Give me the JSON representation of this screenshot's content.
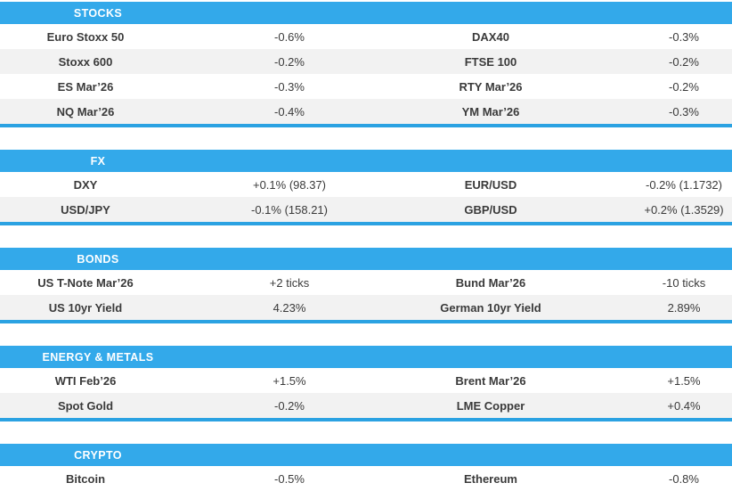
{
  "theme": {
    "header_bg": "#33A9EA",
    "header_text": "#FFFFFF",
    "section_border": "#2BA2E2",
    "row_bg": "#FFFFFF",
    "row_alt_bg": "#F2F2F2",
    "text_color": "#3A3A3A"
  },
  "sections": [
    {
      "title": "STOCKS",
      "rows": [
        {
          "left_name": "Euro Stoxx 50",
          "left_value": "-0.6%",
          "right_name": "DAX40",
          "right_value": "-0.3%"
        },
        {
          "left_name": "Stoxx 600",
          "left_value": "-0.2%",
          "right_name": "FTSE 100",
          "right_value": "-0.2%"
        },
        {
          "left_name": "ES Mar’26",
          "left_value": "-0.3%",
          "right_name": "RTY Mar’26",
          "right_value": "-0.2%"
        },
        {
          "left_name": "NQ Mar’26",
          "left_value": "-0.4%",
          "right_name": "YM Mar’26",
          "right_value": "-0.3%"
        }
      ]
    },
    {
      "title": "FX",
      "rows": [
        {
          "left_name": "DXY",
          "left_value": "+0.1% (98.37)",
          "right_name": "EUR/USD",
          "right_value": "-0.2% (1.1732)"
        },
        {
          "left_name": "USD/JPY",
          "left_value": "-0.1% (158.21)",
          "right_name": "GBP/USD",
          "right_value": "+0.2% (1.3529)"
        }
      ]
    },
    {
      "title": "BONDS",
      "rows": [
        {
          "left_name": "US T-Note Mar’26",
          "left_value": "+2 ticks",
          "right_name": "Bund Mar’26",
          "right_value": "-10 ticks"
        },
        {
          "left_name": "US 10yr Yield",
          "left_value": "4.23%",
          "right_name": "German 10yr Yield",
          "right_value": "2.89%"
        }
      ]
    },
    {
      "title": "ENERGY & METALS",
      "rows": [
        {
          "left_name": "WTI Feb’26",
          "left_value": "+1.5%",
          "right_name": "Brent Mar’26",
          "right_value": "+1.5%"
        },
        {
          "left_name": "Spot Gold",
          "left_value": "-0.2%",
          "right_name": "LME Copper",
          "right_value": "+0.4%"
        }
      ]
    },
    {
      "title": "CRYPTO",
      "rows": [
        {
          "left_name": "Bitcoin",
          "left_value": "-0.5%",
          "right_name": "Ethereum",
          "right_value": "-0.8%"
        }
      ]
    }
  ]
}
